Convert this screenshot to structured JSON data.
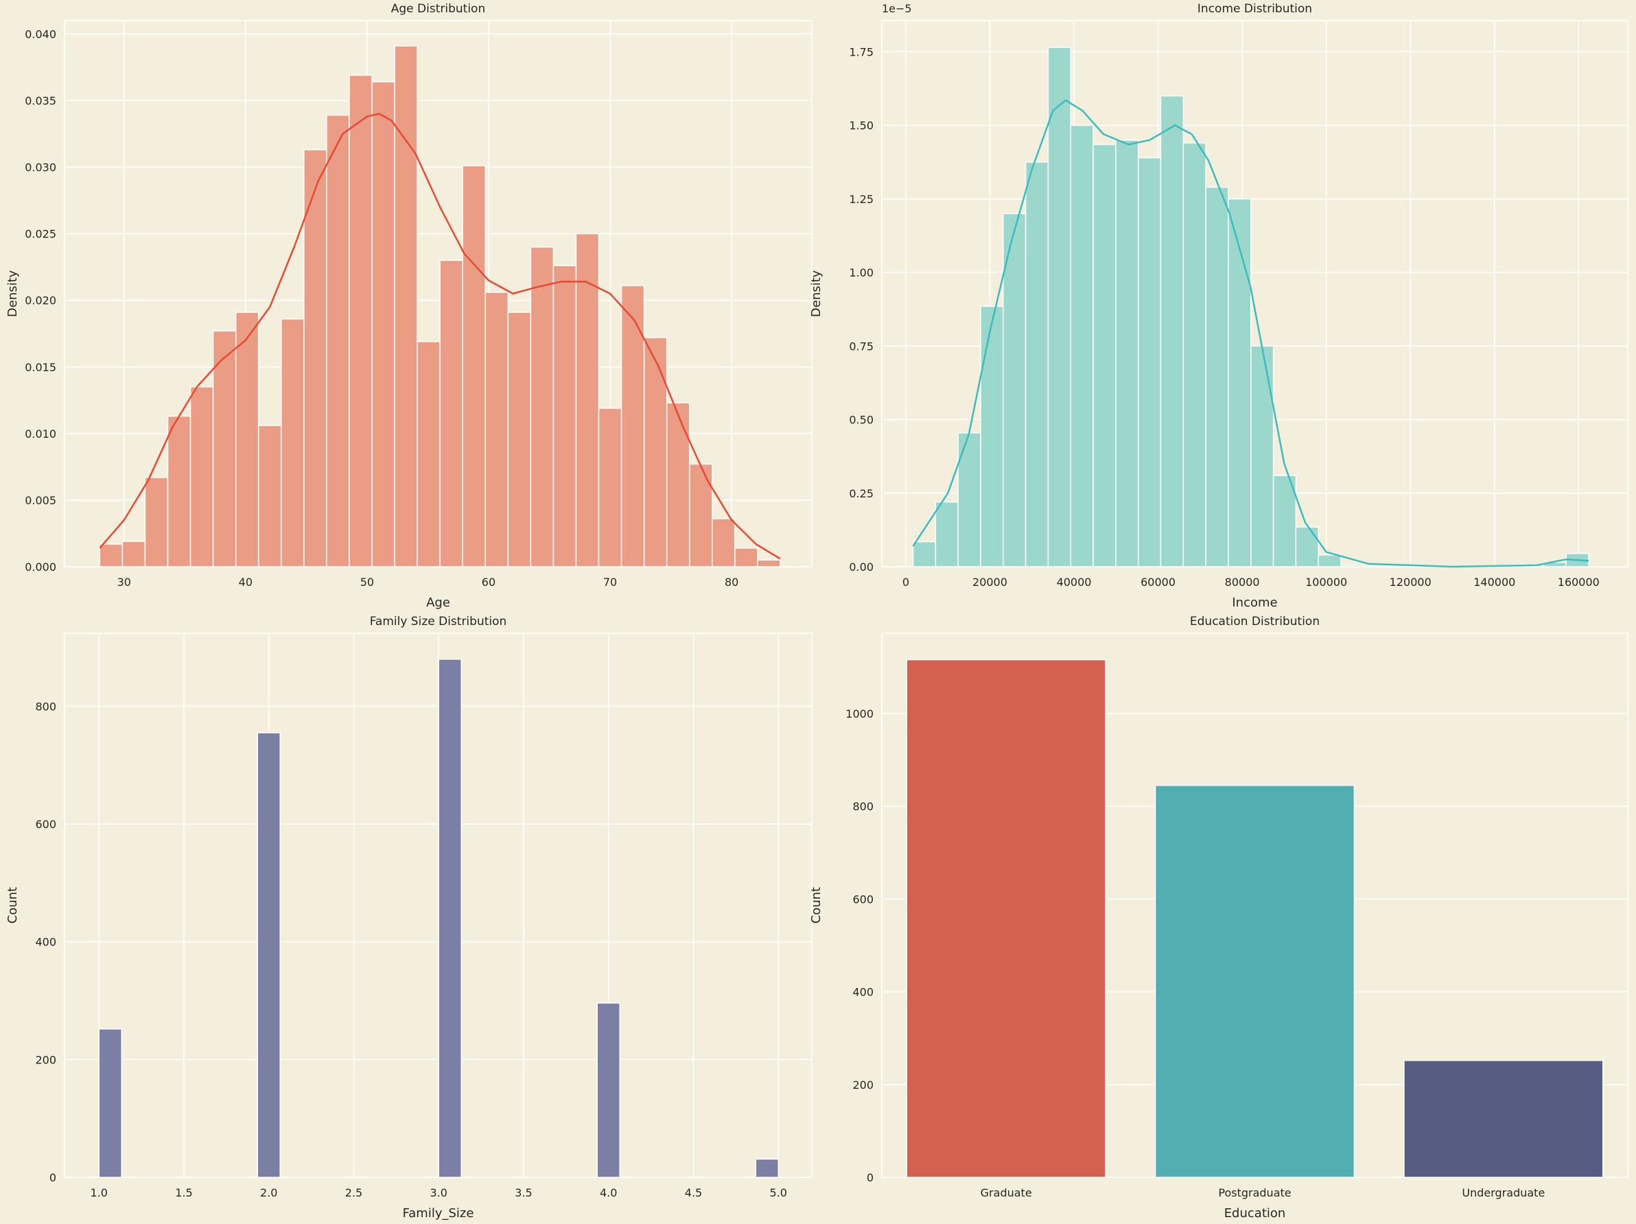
{
  "colors": {
    "background": "#f3efdc",
    "grid": "#ffffff",
    "age_bar": "#eb9c85",
    "age_line": "#e64a33",
    "income_bar": "#9cd7cc",
    "income_line": "#3bbcbf",
    "family_bar": "#7a7fa3",
    "edu": [
      "#d4604f",
      "#52aeb1",
      "#575d82"
    ]
  },
  "chart_data": [
    {
      "type": "histogram",
      "title": "Age Distribution",
      "xlabel": "Age",
      "ylabel": "Density",
      "xlim": [
        25.1,
        86.6
      ],
      "ylim": [
        0,
        0.041
      ],
      "xticks": [
        30,
        40,
        50,
        60,
        70,
        80
      ],
      "yticks": [
        0,
        0.005,
        0.01,
        0.015,
        0.02,
        0.025,
        0.03,
        0.035,
        0.04
      ],
      "ytick_labels": [
        "0.000",
        "0.005",
        "0.010",
        "0.015",
        "0.020",
        "0.025",
        "0.030",
        "0.035",
        "0.040"
      ],
      "bin_range": [
        28,
        84
      ],
      "values": [
        0.0017,
        0.0019,
        0.0067,
        0.0113,
        0.0135,
        0.0177,
        0.0191,
        0.0106,
        0.0186,
        0.0313,
        0.0339,
        0.0369,
        0.0364,
        0.0391,
        0.0169,
        0.023,
        0.0301,
        0.0206,
        0.0191,
        0.024,
        0.0226,
        0.025,
        0.0119,
        0.0211,
        0.0172,
        0.0123,
        0.0077,
        0.0036,
        0.0014,
        0.0005
      ],
      "kde": [
        [
          28,
          0.0014
        ],
        [
          30,
          0.0035
        ],
        [
          32,
          0.0065
        ],
        [
          34,
          0.0105
        ],
        [
          36,
          0.0135
        ],
        [
          38,
          0.0155
        ],
        [
          40,
          0.017
        ],
        [
          42,
          0.0195
        ],
        [
          44,
          0.024
        ],
        [
          46,
          0.029
        ],
        [
          48,
          0.0325
        ],
        [
          50,
          0.0338
        ],
        [
          51,
          0.034
        ],
        [
          52,
          0.0335
        ],
        [
          54,
          0.031
        ],
        [
          56,
          0.027
        ],
        [
          58,
          0.0235
        ],
        [
          60,
          0.0215
        ],
        [
          62,
          0.0205
        ],
        [
          64,
          0.021
        ],
        [
          66,
          0.0214
        ],
        [
          68,
          0.0214
        ],
        [
          70,
          0.0205
        ],
        [
          72,
          0.0185
        ],
        [
          74,
          0.015
        ],
        [
          76,
          0.0105
        ],
        [
          78,
          0.0065
        ],
        [
          80,
          0.0035
        ],
        [
          82,
          0.0017
        ],
        [
          84,
          0.0006
        ]
      ],
      "grid": true
    },
    {
      "type": "histogram",
      "title": "Income Distribution",
      "xlabel": "Income",
      "ylabel": "Density",
      "offset_label": "1e−5",
      "xlim": [
        -5700,
        171700
      ],
      "ylim": [
        0,
        1.856
      ],
      "xticks": [
        0,
        20000,
        40000,
        60000,
        80000,
        100000,
        120000,
        140000,
        160000
      ],
      "yticks": [
        0,
        0.25,
        0.5,
        0.75,
        1.0,
        1.25,
        1.5,
        1.75
      ],
      "ytick_labels": [
        "0.00",
        "0.25",
        "0.50",
        "0.75",
        "1.00",
        "1.25",
        "1.50",
        "1.75"
      ],
      "bin_range": [
        1730,
        162400
      ],
      "values": [
        0.085,
        0.22,
        0.455,
        0.885,
        1.2,
        1.375,
        1.765,
        1.5,
        1.435,
        1.45,
        1.39,
        1.6,
        1.44,
        1.29,
        1.25,
        0.75,
        0.31,
        0.135,
        0.04,
        0.005,
        0,
        0,
        0,
        0,
        0,
        0,
        0,
        0,
        0.015,
        0.045
      ],
      "kde": [
        [
          1730,
          0.07
        ],
        [
          10000,
          0.25
        ],
        [
          15000,
          0.45
        ],
        [
          20000,
          0.8
        ],
        [
          25000,
          1.1
        ],
        [
          30000,
          1.35
        ],
        [
          35000,
          1.55
        ],
        [
          38000,
          1.585
        ],
        [
          42000,
          1.55
        ],
        [
          47000,
          1.47
        ],
        [
          53000,
          1.435
        ],
        [
          58000,
          1.45
        ],
        [
          64000,
          1.5
        ],
        [
          68000,
          1.47
        ],
        [
          72000,
          1.38
        ],
        [
          77000,
          1.2
        ],
        [
          82000,
          0.95
        ],
        [
          86000,
          0.65
        ],
        [
          90000,
          0.35
        ],
        [
          95000,
          0.15
        ],
        [
          100000,
          0.05
        ],
        [
          110000,
          0.01
        ],
        [
          130000,
          0.0
        ],
        [
          150000,
          0.005
        ],
        [
          157000,
          0.025
        ],
        [
          162400,
          0.02
        ]
      ],
      "grid": true
    },
    {
      "type": "histogram",
      "title": "Family Size Distribution",
      "xlabel": "Family_Size",
      "ylabel": "Count",
      "xlim": [
        0.797,
        5.197
      ],
      "ylim": [
        0,
        924
      ],
      "xticks": [
        1.0,
        1.5,
        2.0,
        2.5,
        3.0,
        3.5,
        4.0,
        4.5,
        5.0
      ],
      "xtick_labels": [
        "1.0",
        "1.5",
        "2.0",
        "2.5",
        "3.0",
        "3.5",
        "4.0",
        "4.5",
        "5.0"
      ],
      "yticks": [
        0,
        200,
        400,
        600,
        800
      ],
      "ytick_labels": [
        "0",
        "200",
        "400",
        "600",
        "800"
      ],
      "bin_range": [
        1,
        5
      ],
      "bin_count": 30,
      "categories": [
        1,
        2,
        3,
        4,
        5
      ],
      "values": [
        252,
        755,
        880,
        296,
        31
      ],
      "grid": true
    },
    {
      "type": "bar",
      "title": "Education Distribution",
      "xlabel": "Education",
      "ylabel": "Count",
      "ylim": [
        0,
        1173
      ],
      "yticks": [
        0,
        200,
        400,
        600,
        800,
        1000
      ],
      "ytick_labels": [
        "0",
        "200",
        "400",
        "600",
        "800",
        "1000"
      ],
      "categories": [
        "Graduate",
        "Postgraduate",
        "Undergraduate"
      ],
      "values": [
        1116,
        845,
        252
      ],
      "grid": true
    }
  ]
}
